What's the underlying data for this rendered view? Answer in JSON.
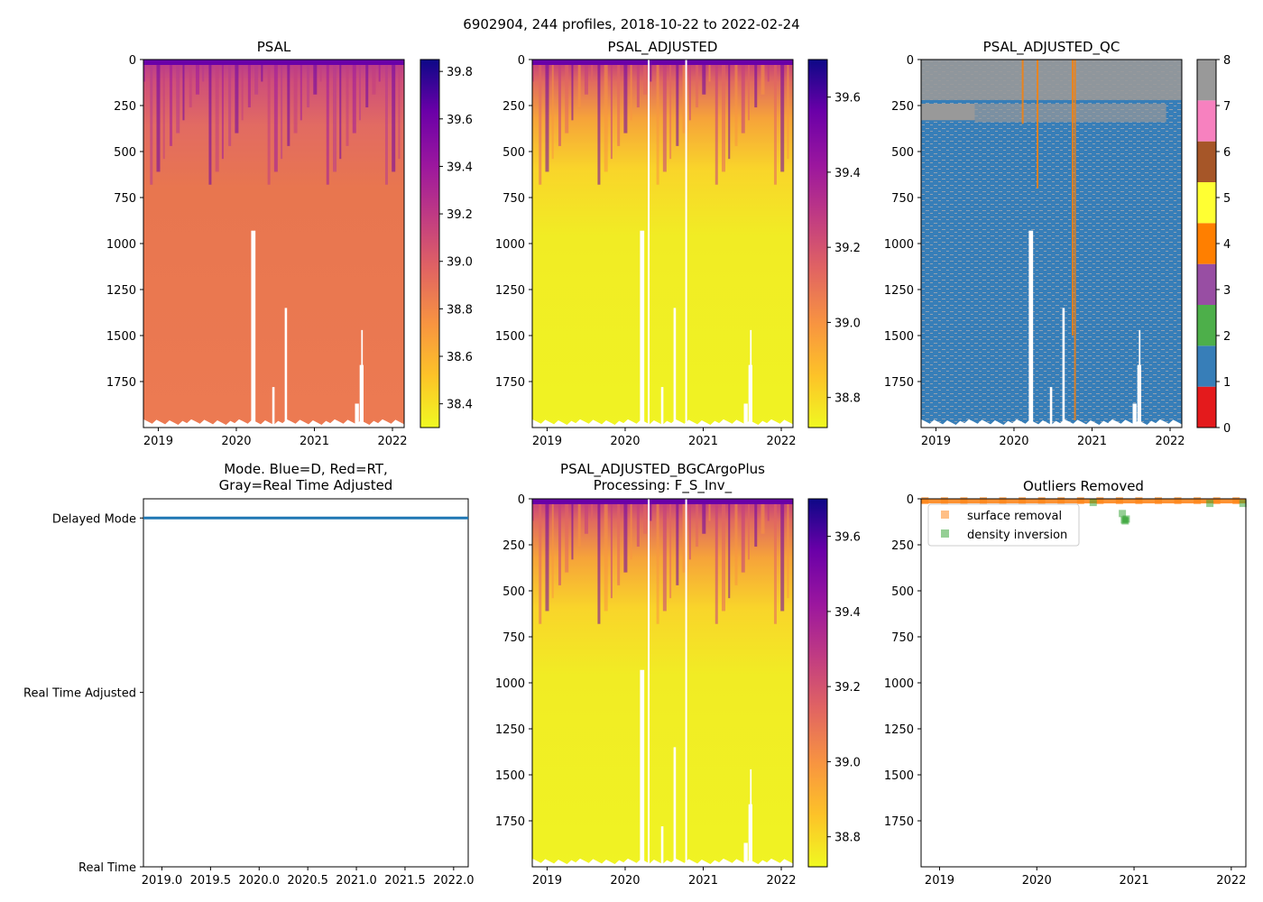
{
  "suptitle": "6902904, 244 profiles, 2018-10-22 to 2022-02-24",
  "chart_data": [
    {
      "id": "psal",
      "type": "heatmap",
      "title": "PSAL",
      "x_ticks": [
        "2019",
        "2020",
        "2021",
        "2022"
      ],
      "x_tick_values": [
        2019.0,
        2020.0,
        2021.0,
        2022.0
      ],
      "xlim": [
        2018.81,
        2022.15
      ],
      "y_ticks": [
        "0",
        "250",
        "500",
        "750",
        "1000",
        "1250",
        "1500",
        "1750"
      ],
      "y_tick_values": [
        0,
        250,
        500,
        750,
        1000,
        1250,
        1500,
        1750
      ],
      "ylim": [
        2000,
        0
      ],
      "colorbar": {
        "colormap": "plasma_r",
        "range": [
          38.3,
          39.85
        ],
        "ticks": [
          "38.4",
          "38.6",
          "38.8",
          "39.0",
          "39.2",
          "39.4",
          "39.6",
          "39.8"
        ],
        "tick_values": [
          38.4,
          38.6,
          38.8,
          39.0,
          39.2,
          39.4,
          39.6,
          39.8
        ]
      }
    },
    {
      "id": "psal_adj",
      "type": "heatmap",
      "title": "PSAL_ADJUSTED",
      "x_ticks": [
        "2019",
        "2020",
        "2021",
        "2022"
      ],
      "x_tick_values": [
        2019.0,
        2020.0,
        2021.0,
        2022.0
      ],
      "xlim": [
        2018.81,
        2022.15
      ],
      "y_ticks": [
        "0",
        "250",
        "500",
        "750",
        "1000",
        "1250",
        "1500",
        "1750"
      ],
      "y_tick_values": [
        0,
        250,
        500,
        750,
        1000,
        1250,
        1500,
        1750
      ],
      "ylim": [
        2000,
        0
      ],
      "colorbar": {
        "colormap": "plasma_r",
        "range": [
          38.72,
          39.7
        ],
        "ticks": [
          "38.8",
          "39.0",
          "39.2",
          "39.4",
          "39.6"
        ],
        "tick_values": [
          38.8,
          39.0,
          39.2,
          39.4,
          39.6
        ]
      }
    },
    {
      "id": "psal_qc",
      "type": "heatmap",
      "title": "PSAL_ADJUSTED_QC",
      "x_ticks": [
        "2019",
        "2020",
        "2021",
        "2022"
      ],
      "x_tick_values": [
        2019.0,
        2020.0,
        2021.0,
        2022.0
      ],
      "xlim": [
        2018.81,
        2022.15
      ],
      "y_ticks": [
        "0",
        "250",
        "500",
        "750",
        "1000",
        "1250",
        "1500",
        "1750"
      ],
      "y_tick_values": [
        0,
        250,
        500,
        750,
        1000,
        1250,
        1500,
        1750
      ],
      "ylim": [
        2000,
        0
      ],
      "colorbar": {
        "colormap": "qc_flags",
        "range": [
          0,
          8
        ],
        "ticks": [
          "0",
          "1",
          "2",
          "3",
          "4",
          "5",
          "6",
          "7",
          "8"
        ],
        "tick_values": [
          0,
          1,
          2,
          3,
          4,
          5,
          6,
          7,
          8
        ],
        "flag_colors": [
          "#e41a1c",
          "#377eb8",
          "#4daf4a",
          "#984ea3",
          "#ff7f00",
          "#ffff33",
          "#a65628",
          "#f781bf",
          "#999999"
        ]
      }
    },
    {
      "id": "mode",
      "type": "line",
      "title_lines": [
        "Mode. Blue=D, Red=RT,",
        "Gray=Real Time Adjusted"
      ],
      "x_ticks": [
        "2019.0",
        "2019.5",
        "2020.0",
        "2020.5",
        "2021.0",
        "2021.5",
        "2022.0"
      ],
      "x_tick_values": [
        2019.0,
        2019.5,
        2020.0,
        2020.5,
        2021.0,
        2021.5,
        2022.0
      ],
      "xlim": [
        2018.81,
        2022.15
      ],
      "y_ticks": [
        "Real Time",
        "Real Time Adjusted",
        "Delayed Mode"
      ],
      "y_tick_values": [
        0,
        1,
        2
      ],
      "ylim": [
        0,
        2.11
      ],
      "series": [
        {
          "name": "Delayed Mode",
          "x": [
            2018.81,
            2022.15
          ],
          "y": [
            2,
            2
          ],
          "color": "#1f77b4"
        }
      ]
    },
    {
      "id": "psal_bgc",
      "type": "heatmap",
      "title_lines": [
        "PSAL_ADJUSTED_BGCArgoPlus",
        "Processing: F_S_Inv_"
      ],
      "x_ticks": [
        "2019",
        "2020",
        "2021",
        "2022"
      ],
      "x_tick_values": [
        2019.0,
        2020.0,
        2021.0,
        2022.0
      ],
      "xlim": [
        2018.81,
        2022.15
      ],
      "y_ticks": [
        "0",
        "250",
        "500",
        "750",
        "1000",
        "1250",
        "1500",
        "1750"
      ],
      "y_tick_values": [
        0,
        250,
        500,
        750,
        1000,
        1250,
        1500,
        1750
      ],
      "ylim": [
        2000,
        0
      ],
      "colorbar": {
        "colormap": "plasma_r",
        "range": [
          38.72,
          39.7
        ],
        "ticks": [
          "38.8",
          "39.0",
          "39.2",
          "39.4",
          "39.6"
        ],
        "tick_values": [
          38.8,
          39.0,
          39.2,
          39.4,
          39.6
        ]
      }
    },
    {
      "id": "outliers",
      "type": "scatter",
      "title": "Outliers Removed",
      "x_ticks": [
        "2019",
        "2020",
        "2021",
        "2022"
      ],
      "x_tick_values": [
        2019.0,
        2020.0,
        2021.0,
        2022.0
      ],
      "xlim": [
        2018.81,
        2022.15
      ],
      "y_ticks": [
        "0",
        "250",
        "500",
        "750",
        "1000",
        "1250",
        "1500",
        "1750"
      ],
      "y_tick_values": [
        0,
        250,
        500,
        750,
        1000,
        1250,
        1500,
        1750
      ],
      "ylim": [
        2000,
        0
      ],
      "series": [
        {
          "name": "surface removal",
          "color": "#ff7f0e",
          "alpha": 0.5,
          "x": [
            2018.85,
            2019.05,
            2019.25,
            2019.45,
            2019.65,
            2019.85,
            2020.05,
            2020.25,
            2020.45,
            2020.65,
            2020.85,
            2021.05,
            2021.25,
            2021.45,
            2021.65,
            2021.85,
            2022.05
          ],
          "y": [
            10,
            10,
            10,
            10,
            10,
            10,
            10,
            10,
            10,
            10,
            10,
            10,
            10,
            10,
            10,
            10,
            10
          ]
        },
        {
          "name": "density inversion",
          "color": "#2ca02c",
          "alpha": 0.5,
          "x": [
            2020.58,
            2020.88,
            2020.9,
            2020.91,
            2020.92,
            2021.78,
            2022.12
          ],
          "y": [
            20,
            80,
            115,
            120,
            110,
            25,
            25
          ]
        }
      ],
      "legend": {
        "placement": "upper-left",
        "entries": [
          "surface removal",
          "density inversion"
        ]
      }
    }
  ]
}
